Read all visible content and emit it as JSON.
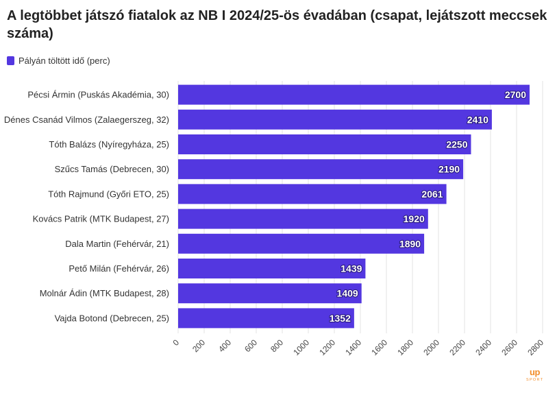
{
  "title": "A legtöbbet játszó fiatalok az NB I 2024/25-ös évadában (csapat, lejátszott meccsek száma)",
  "legend": {
    "label": "Pályán töltött idő (perc)"
  },
  "colors": {
    "bar": "#5337e0",
    "grid": "#e3e3e3",
    "axis_text": "#444444",
    "label_text": "#333333",
    "logo": "#f28c28"
  },
  "chart_data": {
    "type": "bar",
    "orientation": "horizontal",
    "title": "A legtöbbet játszó fiatalok az NB I 2024/25-ös évadában (csapat, lejátszott meccsek száma)",
    "xlabel": "",
    "ylabel": "",
    "categories": [
      "Pécsi Ármin (Puskás Akadémia, 30)",
      "Dénes Csanád Vilmos (Zalaegerszeg, 32)",
      "Tóth Balázs (Nyíregyháza, 25)",
      "Szűcs Tamás (Debrecen, 30)",
      "Tóth Rajmund (Győri ETO, 25)",
      "Kovács Patrik (MTK Budapest, 27)",
      "Dala Martin (Fehérvár, 21)",
      "Pető Milán (Fehérvár, 26)",
      "Molnár Ádin (MTK Budapest, 28)",
      "Vajda Botond (Debrecen, 25)"
    ],
    "series": [
      {
        "name": "Pályán töltött idő (perc)",
        "values": [
          2700,
          2410,
          2250,
          2190,
          2061,
          1920,
          1890,
          1439,
          1409,
          1352
        ]
      }
    ],
    "xlim": [
      0,
      2800
    ],
    "xticks": [
      0,
      200,
      400,
      600,
      800,
      1000,
      1200,
      1400,
      1600,
      1800,
      2000,
      2200,
      2400,
      2600,
      2800
    ],
    "grid": true,
    "legend_position": "top-left",
    "data_labels": true
  },
  "logo": {
    "text_main": "up",
    "text_sub": "SPORT"
  }
}
